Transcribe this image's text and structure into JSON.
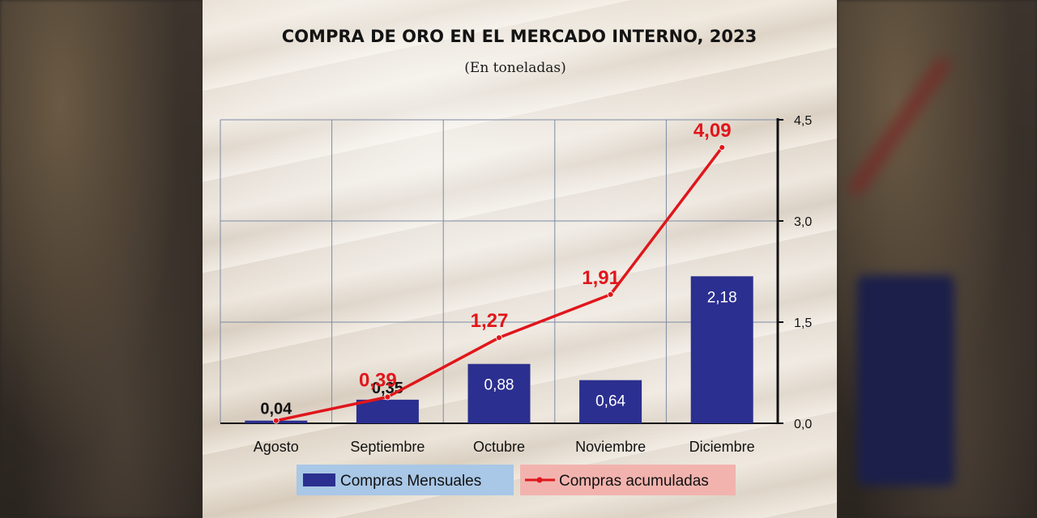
{
  "chart_data": {
    "type": "bar",
    "title": "COMPRA DE ORO EN EL MERCADO INTERNO, 2023",
    "subtitle": "(En toneladas)",
    "categories": [
      "Agosto",
      "Septiembre",
      "Octubre",
      "Noviembre",
      "Diciembre"
    ],
    "series": [
      {
        "name": "Compras Mensuales",
        "kind": "bar",
        "color": "#2b2f8f",
        "values": [
          0.04,
          0.35,
          0.88,
          0.64,
          2.18
        ],
        "labels": [
          "0,04",
          "0,35",
          "0,88",
          "0,64",
          "2,18"
        ]
      },
      {
        "name": "Compras acumuladas",
        "kind": "line",
        "color": "#e0161b",
        "values": [
          0.04,
          0.39,
          1.27,
          1.91,
          4.09
        ],
        "labels": [
          "",
          "0,39",
          "1,27",
          "1,91",
          "4,09"
        ]
      }
    ],
    "ylim": [
      0,
      4.5
    ],
    "y_ticks": [
      0,
      1.5,
      3.0,
      4.5
    ],
    "y_tick_labels": [
      "0,0",
      "1,5",
      "3,0",
      "4,5"
    ],
    "y_axis_position": "right",
    "grid": true,
    "legend_position": "bottom",
    "legend_colors": {
      "bar_box": "#a9c7e6",
      "line_box": "#f2b3ae"
    }
  }
}
